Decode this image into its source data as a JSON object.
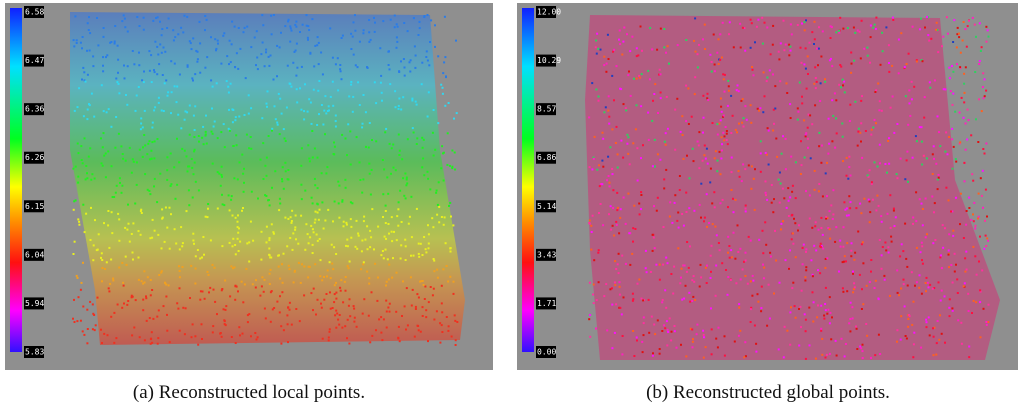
{
  "panels": [
    {
      "caption": "(a)  Reconstructed local points.",
      "colorbar": {
        "labels": [
          "6.58",
          "6.47",
          "6.36",
          "6.26",
          "6.15",
          "6.04",
          "5.94",
          "5.83"
        ]
      }
    },
    {
      "caption": "(b)  Reconstructed global points.",
      "colorbar": {
        "labels": [
          "12.00",
          "10.29",
          "8.57",
          "6.86",
          "5.14",
          "3.43",
          "1.71",
          "0.00"
        ]
      }
    }
  ]
}
